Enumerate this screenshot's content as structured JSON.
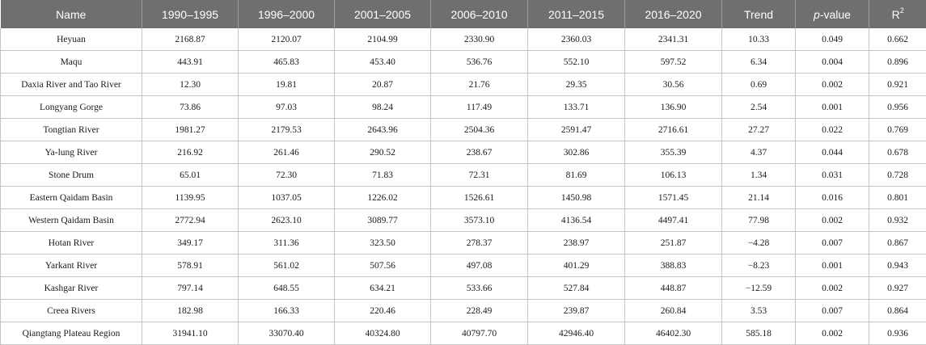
{
  "table": {
    "headers": {
      "name": "Name",
      "p1": "1990–1995",
      "p2": "1996–2000",
      "p3": "2001–2005",
      "p4": "2006–2010",
      "p5": "2011–2015",
      "p6": "2016–2020",
      "trend": "Trend",
      "pvalue_italic": "p",
      "pvalue_rest": "-value",
      "r2_base": "R",
      "r2_sup": "2"
    },
    "rows": [
      [
        "Heyuan",
        "2168.87",
        "2120.07",
        "2104.99",
        "2330.90",
        "2360.03",
        "2341.31",
        "10.33",
        "0.049",
        "0.662"
      ],
      [
        "Maqu",
        "443.91",
        "465.83",
        "453.40",
        "536.76",
        "552.10",
        "597.52",
        "6.34",
        "0.004",
        "0.896"
      ],
      [
        "Daxia River and Tao River",
        "12.30",
        "19.81",
        "20.87",
        "21.76",
        "29.35",
        "30.56",
        "0.69",
        "0.002",
        "0.921"
      ],
      [
        "Longyang Gorge",
        "73.86",
        "97.03",
        "98.24",
        "117.49",
        "133.71",
        "136.90",
        "2.54",
        "0.001",
        "0.956"
      ],
      [
        "Tongtian River",
        "1981.27",
        "2179.53",
        "2643.96",
        "2504.36",
        "2591.47",
        "2716.61",
        "27.27",
        "0.022",
        "0.769"
      ],
      [
        "Ya-lung River",
        "216.92",
        "261.46",
        "290.52",
        "238.67",
        "302.86",
        "355.39",
        "4.37",
        "0.044",
        "0.678"
      ],
      [
        "Stone Drum",
        "65.01",
        "72.30",
        "71.83",
        "72.31",
        "81.69",
        "106.13",
        "1.34",
        "0.031",
        "0.728"
      ],
      [
        "Eastern Qaidam Basin",
        "1139.95",
        "1037.05",
        "1226.02",
        "1526.61",
        "1450.98",
        "1571.45",
        "21.14",
        "0.016",
        "0.801"
      ],
      [
        "Western Qaidam Basin",
        "2772.94",
        "2623.10",
        "3089.77",
        "3573.10",
        "4136.54",
        "4497.41",
        "77.98",
        "0.002",
        "0.932"
      ],
      [
        "Hotan River",
        "349.17",
        "311.36",
        "323.50",
        "278.37",
        "238.97",
        "251.87",
        "−4.28",
        "0.007",
        "0.867"
      ],
      [
        "Yarkant River",
        "578.91",
        "561.02",
        "507.56",
        "497.08",
        "401.29",
        "388.83",
        "−8.23",
        "0.001",
        "0.943"
      ],
      [
        "Kashgar River",
        "797.14",
        "648.55",
        "634.21",
        "533.66",
        "527.84",
        "448.87",
        "−12.59",
        "0.002",
        "0.927"
      ],
      [
        "Creea Rivers",
        "182.98",
        "166.33",
        "220.46",
        "228.49",
        "239.87",
        "260.84",
        "3.53",
        "0.007",
        "0.864"
      ],
      [
        "Qiangtang Plateau Region",
        "31941.10",
        "33070.40",
        "40324.80",
        "40797.70",
        "42946.40",
        "46402.30",
        "585.18",
        "0.002",
        "0.936"
      ]
    ]
  }
}
